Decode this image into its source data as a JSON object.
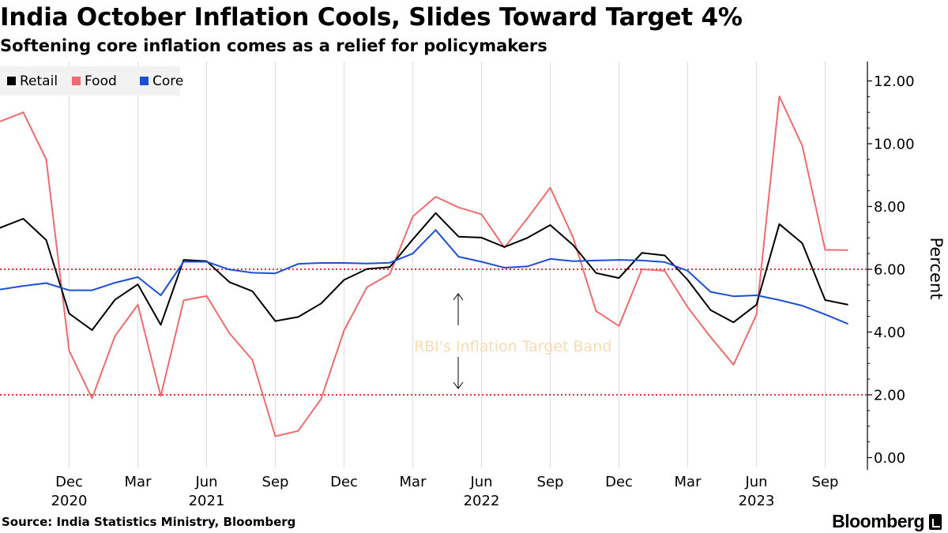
{
  "header": {
    "title": "India October Inflation Cools, Slides Toward Target 4%",
    "subtitle": "Softening core inflation comes as a relief for policymakers"
  },
  "footer": {
    "source": "Source: India Statistics Ministry, Bloomberg",
    "brand": "Bloomberg"
  },
  "colors": {
    "retail": "#000000",
    "food": "#ee6b6e",
    "core": "#1a4fd6",
    "band": "#e5323d",
    "band_text": "#f6dbb3",
    "grid": "#dddddd"
  },
  "chart_data": {
    "type": "line",
    "x": [
      "2020-10",
      "2020-11",
      "2020-12",
      "2021-01",
      "2021-02",
      "2021-03",
      "2021-04",
      "2021-05",
      "2021-06",
      "2021-07",
      "2021-08",
      "2021-09",
      "2021-10",
      "2021-11",
      "2021-12",
      "2022-01",
      "2022-02",
      "2022-03",
      "2022-04",
      "2022-05",
      "2022-06",
      "2022-07",
      "2022-08",
      "2022-09",
      "2022-10",
      "2022-11",
      "2022-12",
      "2023-01",
      "2023-02",
      "2023-03",
      "2023-04",
      "2023-05",
      "2023-06",
      "2023-07",
      "2023-08",
      "2023-09",
      "2023-10"
    ],
    "series": [
      {
        "name": "Retail",
        "color_key": "retail",
        "values": [
          7.61,
          6.93,
          4.59,
          4.06,
          5.03,
          5.52,
          4.23,
          6.3,
          6.26,
          5.59,
          5.3,
          4.35,
          4.48,
          4.91,
          5.66,
          6.01,
          6.07,
          6.95,
          7.79,
          7.04,
          7.01,
          6.71,
          7.0,
          7.41,
          6.77,
          5.88,
          5.72,
          6.52,
          6.44,
          5.66,
          4.7,
          4.31,
          4.87,
          7.44,
          6.83,
          5.02,
          4.87
        ]
      },
      {
        "name": "Food",
        "color_key": "food",
        "values": [
          11.0,
          9.5,
          3.41,
          1.89,
          3.87,
          4.87,
          1.96,
          5.01,
          5.15,
          3.96,
          3.11,
          0.68,
          0.85,
          1.87,
          4.05,
          5.43,
          5.85,
          7.68,
          8.31,
          7.97,
          7.75,
          6.69,
          7.62,
          8.6,
          7.01,
          4.67,
          4.19,
          6.0,
          5.95,
          4.79,
          3.84,
          2.96,
          4.55,
          11.51,
          9.94,
          6.62,
          6.61
        ]
      },
      {
        "name": "Core",
        "color_key": "core",
        "values": [
          5.47,
          5.56,
          5.33,
          5.33,
          5.57,
          5.75,
          5.17,
          6.24,
          6.24,
          5.99,
          5.89,
          5.87,
          6.17,
          6.2,
          6.2,
          6.18,
          6.21,
          6.5,
          7.25,
          6.4,
          6.24,
          6.05,
          6.09,
          6.33,
          6.26,
          6.28,
          6.3,
          6.28,
          6.23,
          5.95,
          5.28,
          5.14,
          5.17,
          5.02,
          4.84,
          4.56,
          4.26
        ]
      }
    ],
    "legend": [
      {
        "label": "Retail",
        "color_key": "retail"
      },
      {
        "label": "Food",
        "color_key": "food"
      },
      {
        "label": "Core",
        "color_key": "core"
      }
    ],
    "x_ticks": [
      {
        "month": "Dec",
        "year": "2020",
        "at": 2
      },
      {
        "month": "Mar",
        "year": "",
        "at": 5
      },
      {
        "month": "Jun",
        "year": "2021",
        "at": 8
      },
      {
        "month": "Sep",
        "year": "",
        "at": 11
      },
      {
        "month": "Dec",
        "year": "",
        "at": 14
      },
      {
        "month": "Mar",
        "year": "",
        "at": 17
      },
      {
        "month": "Jun",
        "year": "2022",
        "at": 20
      },
      {
        "month": "Sep",
        "year": "",
        "at": 23
      },
      {
        "month": "Dec",
        "year": "",
        "at": 26
      },
      {
        "month": "Mar",
        "year": "",
        "at": 29
      },
      {
        "month": "Jun",
        "year": "2023",
        "at": 32
      },
      {
        "month": "Sep",
        "year": "",
        "at": 35
      }
    ],
    "y_ticks": [
      "0.00",
      "2.00",
      "4.00",
      "6.00",
      "8.00",
      "10.00",
      "12.00"
    ],
    "y_tick_values": [
      0,
      2,
      4,
      6,
      8,
      10,
      12
    ],
    "ylim": [
      -0.3,
      12.6
    ],
    "ylabel": "Percent",
    "target_band": [
      2,
      6
    ],
    "band_label": "RBI's Inflation Target Band",
    "legend_position": "top-left"
  }
}
